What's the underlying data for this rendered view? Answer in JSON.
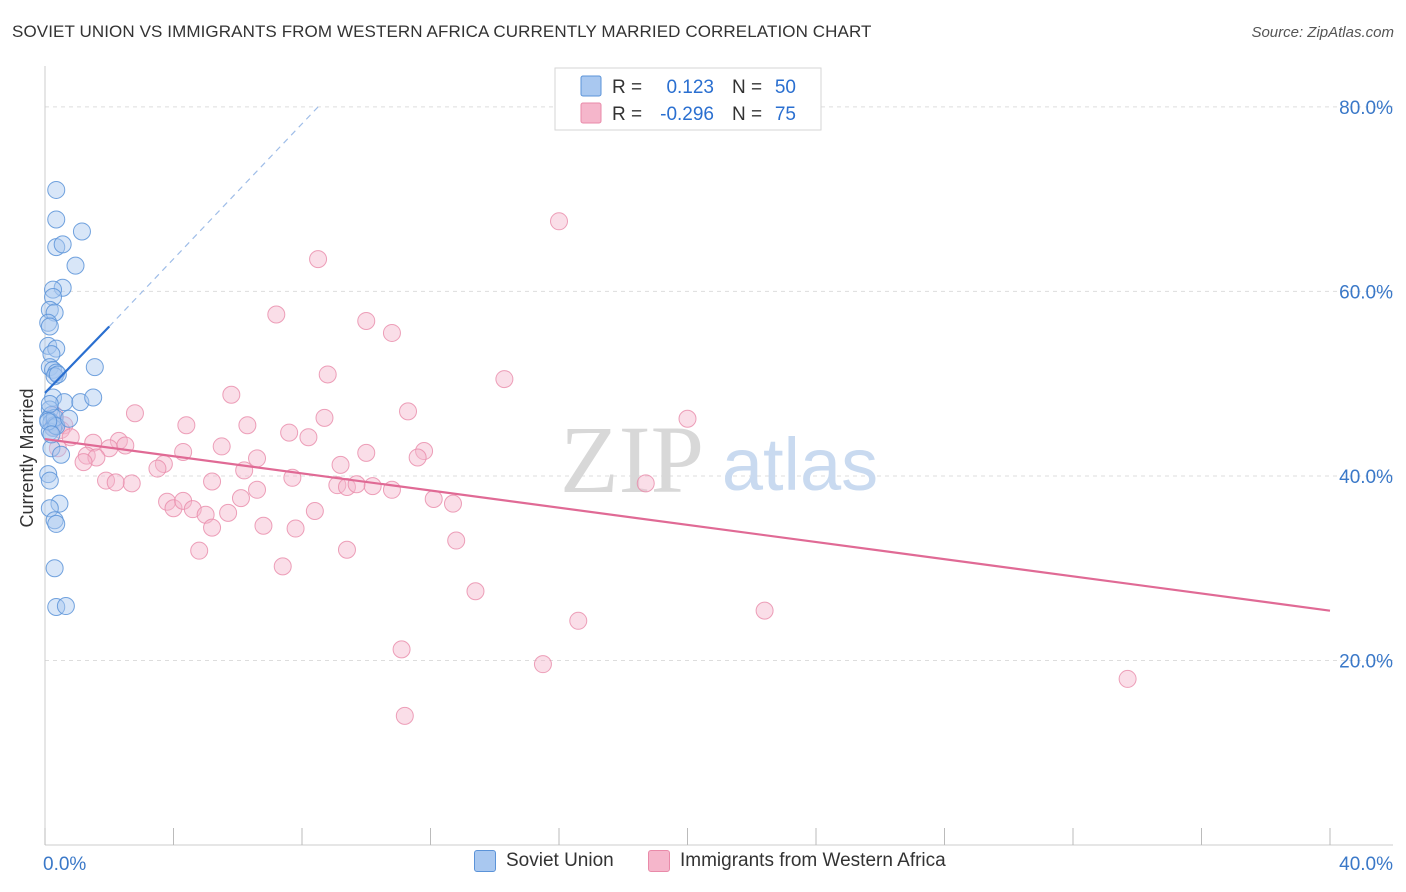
{
  "header": {
    "title": "SOVIET UNION VS IMMIGRANTS FROM WESTERN AFRICA CURRENTLY MARRIED CORRELATION CHART",
    "source": "Source: ZipAtlas.com"
  },
  "watermark": {
    "zip": "ZIP",
    "atlas": "atlas"
  },
  "colors": {
    "blue_fill": "#a9c8f0",
    "blue_stroke": "#5b93d8",
    "blue_line": "#2a6fd0",
    "pink_fill": "#f5b6cb",
    "pink_stroke": "#e98aa9",
    "pink_line": "#e06a95",
    "axis_label": "#3a78c8",
    "grid": "#dddddd"
  },
  "legend": {
    "rows": [
      {
        "r_label": "R =",
        "r_value": "0.123",
        "n_label": "N =",
        "n_value": "50"
      },
      {
        "r_label": "R =",
        "r_value": "-0.296",
        "n_label": "N =",
        "n_value": "75"
      }
    ]
  },
  "chart_data": {
    "type": "scatter",
    "title": "SOVIET UNION VS IMMIGRANTS FROM WESTERN AFRICA CURRENTLY MARRIED CORRELATION CHART",
    "xlabel": "",
    "ylabel": "Currently Married",
    "xlim": [
      0,
      40
    ],
    "ylim": [
      0,
      84
    ],
    "x_tick_labels": [
      "0.0%",
      "40.0%"
    ],
    "y_ticks": [
      20,
      40,
      60,
      80
    ],
    "y_tick_labels": [
      "20.0%",
      "40.0%",
      "60.0%",
      "80.0%"
    ],
    "grid": true,
    "legend_position": "top-center",
    "series": [
      {
        "name": "Soviet Union",
        "color": "#a9c8f0",
        "points": [
          [
            0.35,
            71.0
          ],
          [
            0.35,
            67.8
          ],
          [
            1.15,
            66.5
          ],
          [
            0.35,
            64.8
          ],
          [
            0.55,
            65.1
          ],
          [
            0.95,
            62.8
          ],
          [
            0.55,
            60.4
          ],
          [
            0.25,
            60.2
          ],
          [
            0.25,
            59.4
          ],
          [
            0.15,
            58.0
          ],
          [
            0.3,
            57.7
          ],
          [
            0.1,
            56.6
          ],
          [
            0.15,
            56.2
          ],
          [
            0.1,
            54.1
          ],
          [
            0.35,
            53.8
          ],
          [
            0.2,
            53.2
          ],
          [
            0.15,
            51.8
          ],
          [
            0.25,
            51.5
          ],
          [
            0.35,
            51.2
          ],
          [
            0.3,
            50.8
          ],
          [
            0.4,
            51.0
          ],
          [
            1.55,
            51.8
          ],
          [
            0.25,
            48.5
          ],
          [
            0.6,
            48.0
          ],
          [
            1.1,
            48.0
          ],
          [
            1.5,
            48.5
          ],
          [
            0.15,
            47.2
          ],
          [
            0.2,
            46.6
          ],
          [
            0.1,
            46.1
          ],
          [
            0.2,
            45.8
          ],
          [
            0.3,
            45.5
          ],
          [
            0.25,
            45.2
          ],
          [
            0.15,
            44.8
          ],
          [
            0.3,
            46.3
          ],
          [
            0.35,
            45.4
          ],
          [
            0.75,
            46.2
          ],
          [
            0.2,
            43.0
          ],
          [
            0.5,
            42.3
          ],
          [
            0.1,
            40.2
          ],
          [
            0.15,
            39.5
          ],
          [
            0.45,
            37.0
          ],
          [
            0.15,
            36.5
          ],
          [
            0.3,
            35.2
          ],
          [
            0.35,
            34.8
          ],
          [
            0.3,
            30.0
          ],
          [
            0.35,
            25.8
          ],
          [
            0.65,
            25.9
          ],
          [
            0.1,
            45.9
          ],
          [
            0.2,
            44.5
          ],
          [
            0.15,
            47.8
          ]
        ]
      },
      {
        "name": "Immigrants from Western Africa",
        "color": "#f5b6cb",
        "points": [
          [
            16.0,
            67.6
          ],
          [
            8.5,
            63.5
          ],
          [
            7.2,
            57.5
          ],
          [
            10.0,
            56.8
          ],
          [
            10.8,
            55.5
          ],
          [
            14.3,
            50.5
          ],
          [
            8.8,
            51.0
          ],
          [
            5.8,
            48.8
          ],
          [
            20.0,
            46.2
          ],
          [
            2.8,
            46.8
          ],
          [
            11.3,
            47.0
          ],
          [
            4.4,
            45.5
          ],
          [
            6.3,
            45.5
          ],
          [
            8.7,
            46.3
          ],
          [
            7.6,
            44.7
          ],
          [
            8.2,
            44.2
          ],
          [
            11.8,
            42.7
          ],
          [
            0.6,
            45.5
          ],
          [
            0.3,
            46.6
          ],
          [
            0.5,
            45.0
          ],
          [
            2.3,
            43.8
          ],
          [
            2.0,
            43.0
          ],
          [
            1.5,
            43.6
          ],
          [
            2.5,
            43.3
          ],
          [
            1.3,
            42.2
          ],
          [
            1.6,
            42.0
          ],
          [
            1.2,
            41.5
          ],
          [
            4.3,
            42.6
          ],
          [
            5.5,
            43.2
          ],
          [
            3.7,
            41.3
          ],
          [
            3.5,
            40.8
          ],
          [
            6.6,
            41.9
          ],
          [
            9.2,
            41.2
          ],
          [
            10.0,
            42.5
          ],
          [
            11.6,
            42.0
          ],
          [
            1.9,
            39.5
          ],
          [
            2.7,
            39.2
          ],
          [
            2.2,
            39.3
          ],
          [
            5.2,
            39.4
          ],
          [
            7.7,
            39.8
          ],
          [
            6.6,
            38.5
          ],
          [
            9.1,
            39.0
          ],
          [
            9.4,
            38.8
          ],
          [
            9.7,
            39.1
          ],
          [
            10.8,
            38.5
          ],
          [
            12.1,
            37.5
          ],
          [
            12.7,
            37.0
          ],
          [
            3.8,
            37.2
          ],
          [
            4.0,
            36.5
          ],
          [
            4.3,
            37.3
          ],
          [
            4.6,
            36.4
          ],
          [
            5.0,
            35.8
          ],
          [
            5.7,
            36.0
          ],
          [
            6.1,
            37.6
          ],
          [
            8.4,
            36.2
          ],
          [
            5.2,
            34.4
          ],
          [
            6.8,
            34.6
          ],
          [
            7.8,
            34.3
          ],
          [
            12.8,
            33.0
          ],
          [
            9.4,
            32.0
          ],
          [
            4.8,
            31.9
          ],
          [
            7.4,
            30.2
          ],
          [
            18.7,
            39.2
          ],
          [
            13.4,
            27.5
          ],
          [
            16.6,
            24.3
          ],
          [
            22.4,
            25.4
          ],
          [
            11.1,
            21.2
          ],
          [
            15.5,
            19.6
          ],
          [
            33.7,
            18.0
          ],
          [
            11.2,
            14.0
          ],
          [
            0.25,
            45.3
          ],
          [
            0.8,
            44.2
          ],
          [
            0.4,
            43.0
          ],
          [
            6.2,
            40.6
          ],
          [
            10.2,
            38.9
          ]
        ]
      }
    ],
    "trendlines": [
      {
        "series": "Soviet Union",
        "x0": 0.0,
        "y0": 49.0,
        "x1": 2.0,
        "y1": 56.2,
        "x1_dashed": 8.5,
        "y1_dashed": 80.0
      },
      {
        "series": "Immigrants from Western Africa",
        "x0": 0.0,
        "y0": 44.0,
        "x1": 40.0,
        "y1": 25.4
      }
    ]
  }
}
